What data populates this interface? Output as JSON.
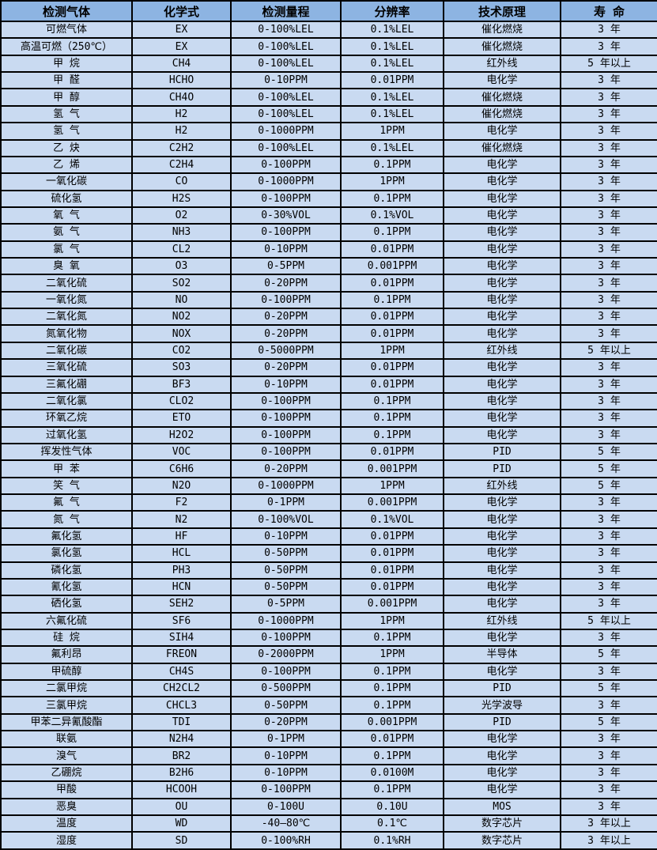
{
  "table": {
    "title": "gas-detection-spec-table",
    "columns": [
      "检测气体",
      "化学式",
      "检测量程",
      "分辨率",
      "技术原理",
      "寿 命"
    ],
    "rows": [
      [
        "可燃气体",
        "EX",
        "0-100%LEL",
        "0.1%LEL",
        "催化燃烧",
        "3 年"
      ],
      [
        "高温可燃（250℃）",
        "EX",
        "0-100%LEL",
        "0.1%LEL",
        "催化燃烧",
        "3 年"
      ],
      [
        "甲 烷",
        "CH4",
        "0-100%LEL",
        "0.1%LEL",
        "红外线",
        "5 年以上"
      ],
      [
        "甲 醛",
        "HCHO",
        "0-10PPM",
        "0.01PPM",
        "电化学",
        "3 年"
      ],
      [
        "甲 醇",
        "CH4O",
        "0-100%LEL",
        "0.1%LEL",
        "催化燃烧",
        "3 年"
      ],
      [
        "氢 气",
        "H2",
        "0-100%LEL",
        "0.1%LEL",
        "催化燃烧",
        "3 年"
      ],
      [
        "氢 气",
        "H2",
        "0-1000PPM",
        "1PPM",
        "电化学",
        "3 年"
      ],
      [
        "乙 炔",
        "C2H2",
        "0-100%LEL",
        "0.1%LEL",
        "催化燃烧",
        "3 年"
      ],
      [
        "乙 烯",
        "C2H4",
        "0-100PPM",
        "0.1PPM",
        "电化学",
        "3 年"
      ],
      [
        "一氧化碳",
        "CO",
        "0-1000PPM",
        "1PPM",
        "电化学",
        "3 年"
      ],
      [
        "硫化氢",
        "H2S",
        "0-100PPM",
        "0.1PPM",
        "电化学",
        "3 年"
      ],
      [
        "氧 气",
        "O2",
        "0-30%VOL",
        "0.1%VOL",
        "电化学",
        "3 年"
      ],
      [
        "氨 气",
        "NH3",
        "0-100PPM",
        "0.1PPM",
        "电化学",
        "3 年"
      ],
      [
        "氯 气",
        "CL2",
        "0-10PPM",
        "0.01PPM",
        "电化学",
        "3 年"
      ],
      [
        "臭 氧",
        "O3",
        "0-5PPM",
        "0.001PPM",
        "电化学",
        "3 年"
      ],
      [
        "二氧化硫",
        "SO2",
        "0-20PPM",
        "0.01PPM",
        "电化学",
        "3 年"
      ],
      [
        "一氧化氮",
        "NO",
        "0-100PPM",
        "0.1PPM",
        "电化学",
        "3 年"
      ],
      [
        "二氧化氮",
        "NO2",
        "0-20PPM",
        "0.01PPM",
        "电化学",
        "3 年"
      ],
      [
        "氮氧化物",
        "NOX",
        "0-20PPM",
        "0.01PPM",
        "电化学",
        "3 年"
      ],
      [
        "二氧化碳",
        "CO2",
        "0-5000PPM",
        "1PPM",
        "红外线",
        "5 年以上"
      ],
      [
        "三氧化硫",
        "SO3",
        "0-20PPM",
        "0.01PPM",
        "电化学",
        "3 年"
      ],
      [
        "三氟化硼",
        "BF3",
        "0-10PPM",
        "0.01PPM",
        "电化学",
        "3 年"
      ],
      [
        "二氧化氯",
        "CLO2",
        "0-100PPM",
        "0.1PPM",
        "电化学",
        "3 年"
      ],
      [
        "环氧乙烷",
        "ETO",
        "0-100PPM",
        "0.1PPM",
        "电化学",
        "3 年"
      ],
      [
        "过氧化氢",
        "H2O2",
        "0-100PPM",
        "0.1PPM",
        "电化学",
        "3 年"
      ],
      [
        "挥发性气体",
        "VOC",
        "0-100PPM",
        "0.01PPM",
        "PID",
        "5 年"
      ],
      [
        "甲 苯",
        "C6H6",
        "0-20PPM",
        "0.001PPM",
        "PID",
        "5 年"
      ],
      [
        "笑 气",
        "N2O",
        "0-1000PPM",
        "1PPM",
        "红外线",
        "5 年"
      ],
      [
        "氟 气",
        "F2",
        "0-1PPM",
        "0.001PPM",
        "电化学",
        "3 年"
      ],
      [
        "氮 气",
        "N2",
        "0-100%VOL",
        "0.1%VOL",
        "电化学",
        "3 年"
      ],
      [
        "氟化氢",
        "HF",
        "0-10PPM",
        "0.01PPM",
        "电化学",
        "3 年"
      ],
      [
        "氯化氢",
        "HCL",
        "0-50PPM",
        "0.01PPM",
        "电化学",
        "3 年"
      ],
      [
        "磷化氢",
        "PH3",
        "0-50PPM",
        "0.01PPM",
        "电化学",
        "3 年"
      ],
      [
        "氰化氢",
        "HCN",
        "0-50PPM",
        "0.01PPM",
        "电化学",
        "3 年"
      ],
      [
        "硒化氢",
        "SEH2",
        "0-5PPM",
        "0.001PPM",
        "电化学",
        "3 年"
      ],
      [
        "六氟化硫",
        "SF6",
        "0-1000PPM",
        "1PPM",
        "红外线",
        "5 年以上"
      ],
      [
        "硅 烷",
        "SIH4",
        "0-100PPM",
        "0.1PPM",
        "电化学",
        "3 年"
      ],
      [
        "氟利昂",
        "FREON",
        "0-2000PPM",
        "1PPM",
        "半导体",
        "5 年"
      ],
      [
        "甲硫醇",
        "CH4S",
        "0-100PPM",
        "0.1PPM",
        "电化学",
        "3 年"
      ],
      [
        "二氯甲烷",
        "CH2CL2",
        "0-500PPM",
        "0.1PPM",
        "PID",
        "5 年"
      ],
      [
        "三氯甲烷",
        "CHCL3",
        "0-50PPM",
        "0.1PPM",
        "光学波导",
        "3 年"
      ],
      [
        "甲苯二异氰酸酯",
        "TDI",
        "0-20PPM",
        "0.001PPM",
        "PID",
        "5 年"
      ],
      [
        "联氨",
        "N2H4",
        "0-1PPM",
        "0.01PPM",
        "电化学",
        "3 年"
      ],
      [
        "溴气",
        "BR2",
        "0-10PPM",
        "0.1PPM",
        "电化学",
        "3 年"
      ],
      [
        "乙硼烷",
        "B2H6",
        "0-10PPM",
        "0.0100M",
        "电化学",
        "3 年"
      ],
      [
        "甲酸",
        "HCOOH",
        "0-100PPM",
        "0.1PPM",
        "电化学",
        "3 年"
      ],
      [
        "恶臭",
        "OU",
        "0-100U",
        "0.10U",
        "MOS",
        "3 年"
      ],
      [
        "温度",
        "WD",
        "-40—80℃",
        "0.1℃",
        "数字芯片",
        "3 年以上"
      ],
      [
        "湿度",
        "SD",
        "0-100%RH",
        "0.1%RH",
        "数字芯片",
        "3 年以上"
      ]
    ],
    "colors": {
      "header_bg": "#8db4e2",
      "row_bg": "#c9daf1",
      "border": "#000000",
      "text": "#000000"
    }
  }
}
